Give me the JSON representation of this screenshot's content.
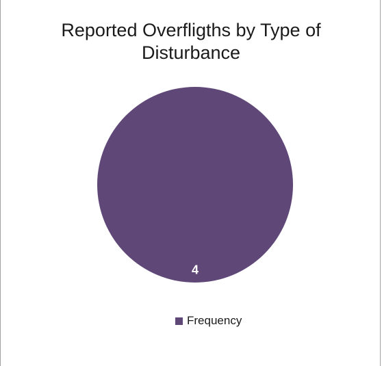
{
  "chart_data": {
    "type": "pie",
    "title_lines": [
      "Reported Overfligths by Type of",
      "Disturbance"
    ],
    "categories": [
      "Frequency"
    ],
    "values": [
      4
    ],
    "data_labels": [
      "4"
    ],
    "legend": {
      "position": "bottom",
      "entries": [
        "Frequency"
      ]
    },
    "colors": [
      "#5f4878"
    ],
    "label_color": "#ffffff"
  }
}
